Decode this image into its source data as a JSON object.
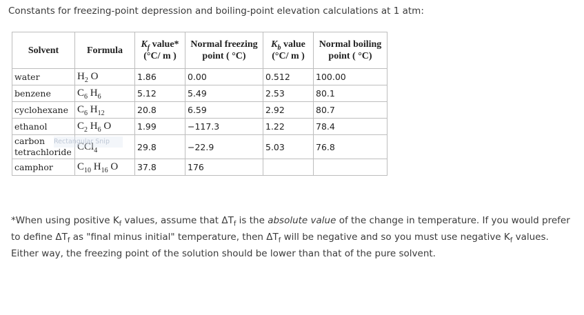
{
  "intro": "Constants for freezing-point depression and boiling-point elevation calculations at 1 atm:",
  "table": {
    "headers": {
      "solvent": "Solvent",
      "formula": "Formula",
      "kf_line1_symbol": "K",
      "kf_line1_sub": "f",
      "kf_line1_rest": " value*",
      "kf_line2": "(°C/ m )",
      "fp_line1": "Normal freezing",
      "fp_line2": "point ( °C)",
      "kb_line1_symbol": "K",
      "kb_line1_sub": "b",
      "kb_line1_rest": " value",
      "kb_line2": "(°C/ m )",
      "bp_line1": "Normal boiling",
      "bp_line2": "point ( °C)"
    },
    "rows": [
      {
        "solvent": "water",
        "solvent2": "",
        "f1": "H",
        "s1": "2",
        "f2": "O",
        "s2": "",
        "f3": "",
        "s3": "",
        "f4": "",
        "kf": "1.86",
        "fp": "0.00",
        "kb": "0.512",
        "bp": "100.00"
      },
      {
        "solvent": "benzene",
        "solvent2": "",
        "f1": "C",
        "s1": "6",
        "f2": "H",
        "s2": "6",
        "f3": "",
        "s3": "",
        "f4": "",
        "kf": "5.12",
        "fp": "5.49",
        "kb": "2.53",
        "bp": "80.1"
      },
      {
        "solvent": "cyclohexane",
        "solvent2": "",
        "f1": "C",
        "s1": "6",
        "f2": "H",
        "s2": "12",
        "f3": "",
        "s3": "",
        "f4": "",
        "kf": "20.8",
        "fp": "6.59",
        "kb": "2.92",
        "bp": "80.7"
      },
      {
        "solvent": "ethanol",
        "solvent2": "",
        "f1": "C",
        "s1": "2",
        "f2": "H",
        "s2": "6",
        "f3": "O",
        "s3": "",
        "f4": "",
        "kf": "1.99",
        "fp": "−117.3",
        "kb": "1.22",
        "bp": "78.4"
      },
      {
        "solvent": "carbon",
        "solvent2": "tetrachloride",
        "f1": "CCl",
        "s1": "4",
        "f2": "",
        "s2": "",
        "f3": "",
        "s3": "",
        "f4": "",
        "kf": "29.8",
        "fp": "−22.9",
        "kb": "5.03",
        "bp": "76.8"
      },
      {
        "solvent": "camphor",
        "solvent2": "",
        "f1": "C",
        "s1": "10",
        "f2": "H",
        "s2": "16",
        "f3": "O",
        "s3": "",
        "f4": "",
        "kf": "37.8",
        "fp": "176",
        "kb": "",
        "bp": ""
      }
    ]
  },
  "snip_label": "Rectangular Snip",
  "note": {
    "p1": "*When using positive ",
    "k1": "K",
    "k1sub": "f",
    "p2": " values, assume that Δ",
    "t1": "T",
    "t1sub": "f",
    "p3": " is the ",
    "em": "absolute value",
    "p4": " of the change in temperature. If you would prefer to define Δ",
    "t2": "T",
    "t2sub": "f",
    "p5": " as \"final minus initial\" temperature, then Δ",
    "t3": "T",
    "t3sub": "f",
    "p6": " will be negative and so you must use negative ",
    "k2": "K",
    "k2sub": "f",
    "p7": " values. Either way, the freezing point of the solution should be lower than that of the pure solvent."
  }
}
